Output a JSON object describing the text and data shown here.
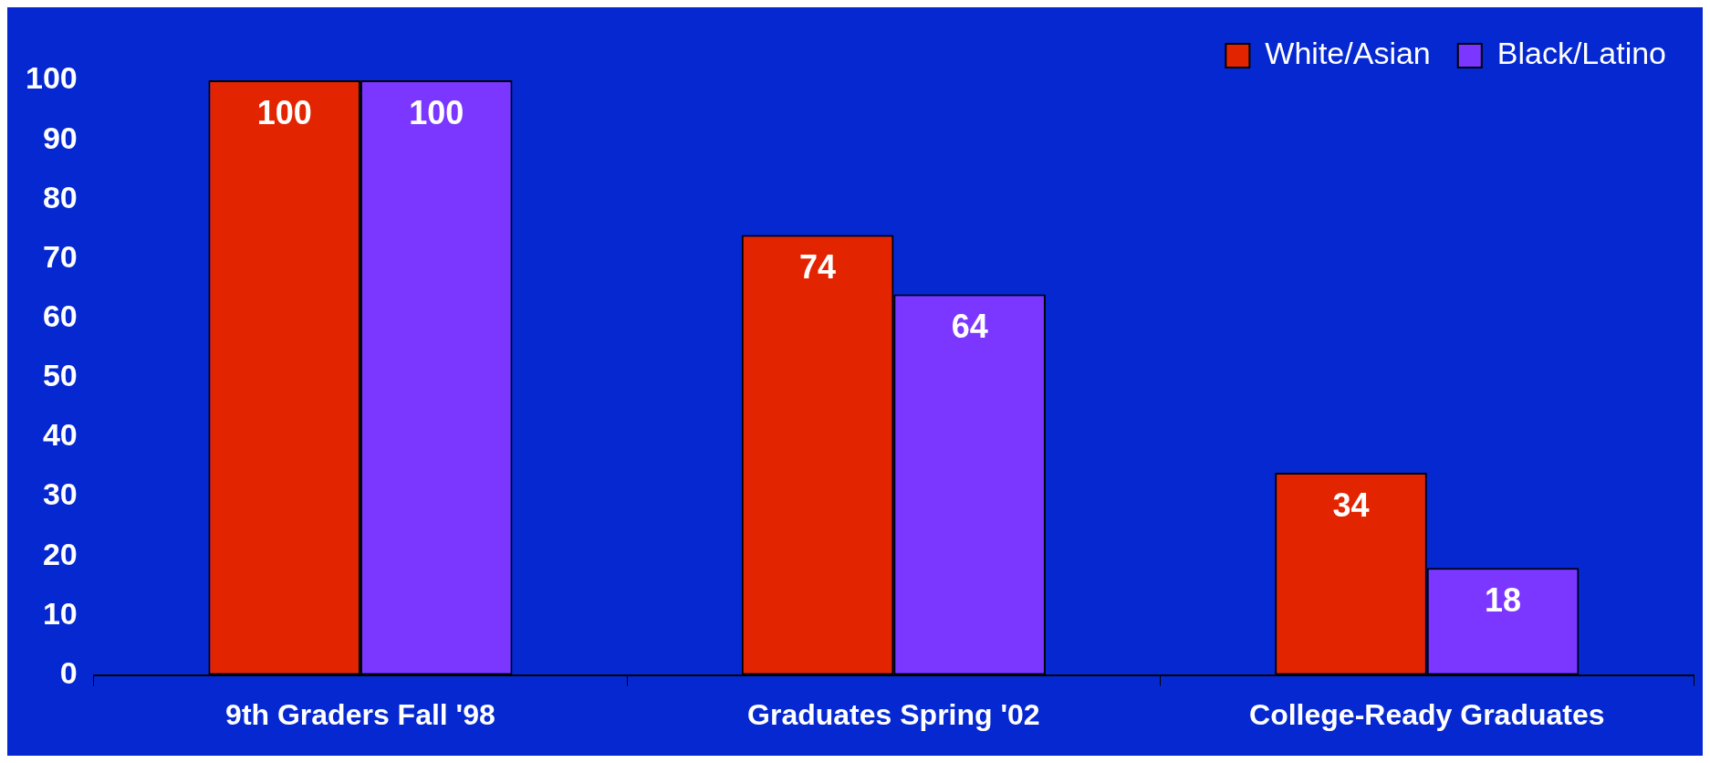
{
  "chart_data": {
    "type": "bar",
    "categories": [
      "9th Graders Fall '98",
      "Graduates Spring '02",
      "College-Ready Graduates"
    ],
    "series": [
      {
        "name": "White/Asian",
        "color": "#e32400",
        "values": [
          100,
          74,
          34
        ]
      },
      {
        "name": "Black/Latino",
        "color": "#7b36ff",
        "values": [
          100,
          64,
          18
        ]
      }
    ],
    "ylim": [
      0,
      100
    ],
    "yticks": [
      0,
      10,
      20,
      30,
      40,
      50,
      60,
      70,
      80,
      90,
      100
    ],
    "grid": false,
    "legend": "top right",
    "data_labels": true
  }
}
